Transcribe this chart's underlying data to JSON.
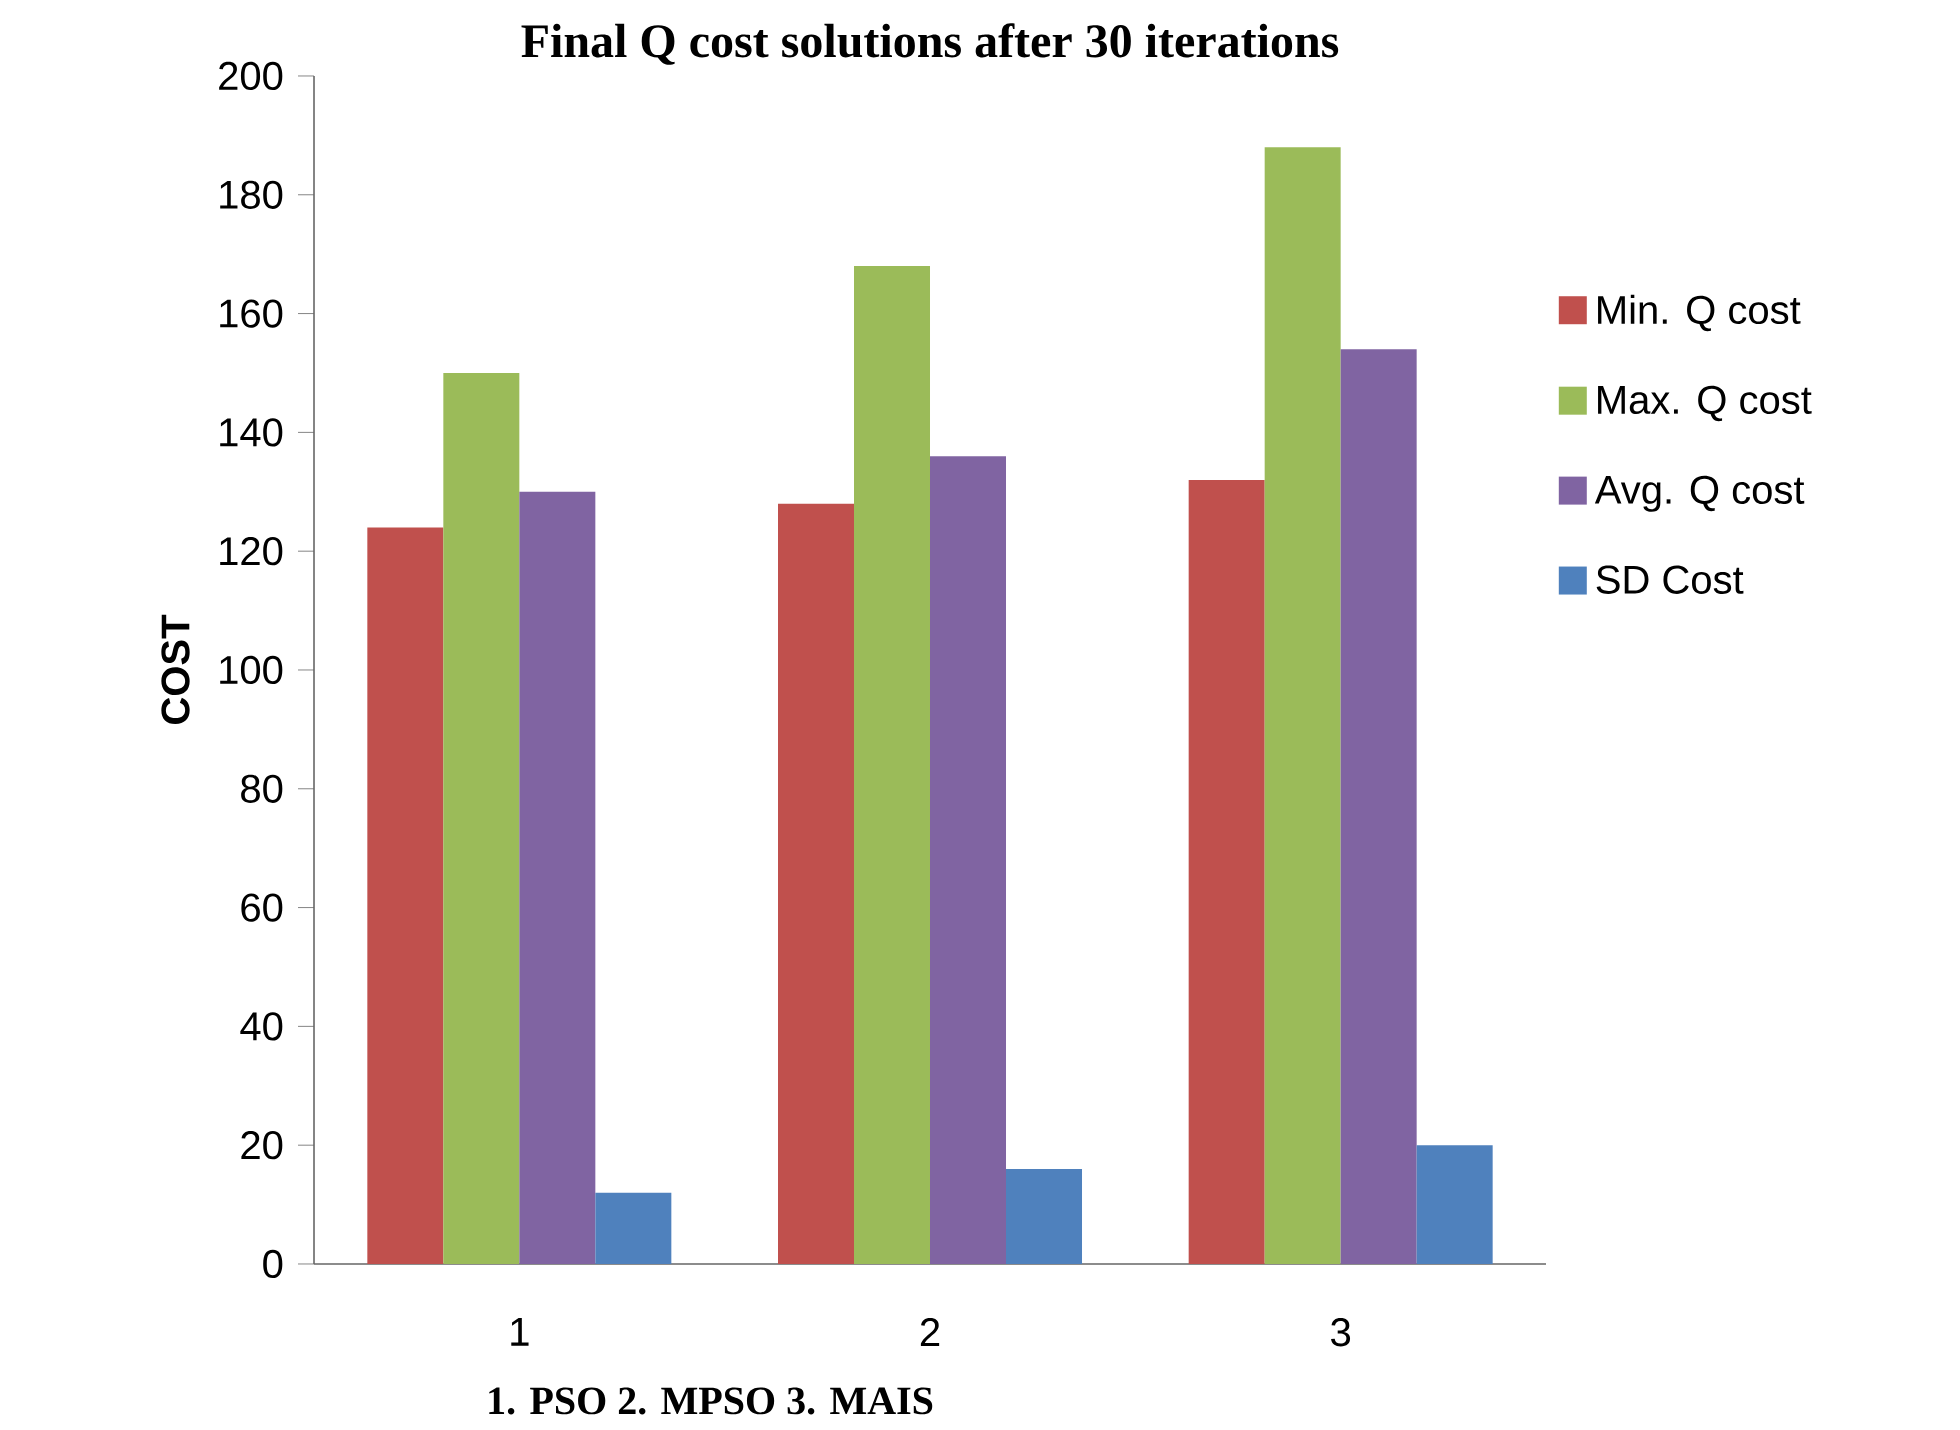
{
  "chart_data": {
    "type": "bar",
    "title": "Final Q cost solutions after 30 iterations",
    "ylabel": "COST",
    "categories": [
      "1",
      "2",
      "3"
    ],
    "series": [
      {
        "name": "Min. Q cost",
        "color": "#c0504d",
        "values": [
          124,
          128,
          132
        ]
      },
      {
        "name": "Max. Q cost",
        "color": "#9bbb59",
        "values": [
          150,
          168,
          188
        ]
      },
      {
        "name": "Avg. Q cost",
        "color": "#8064a2",
        "values": [
          130,
          136,
          154
        ]
      },
      {
        "name": "SD Cost",
        "color": "#4f81bd",
        "values": [
          12,
          16,
          20
        ]
      }
    ],
    "ylim": [
      0,
      200
    ],
    "yticks": [
      0,
      20,
      40,
      60,
      80,
      100,
      120,
      140,
      160,
      180,
      200
    ],
    "grid": false,
    "legend": "right",
    "annotations": [
      "1. PSO  2. MPSO  3. MAIS"
    ]
  }
}
